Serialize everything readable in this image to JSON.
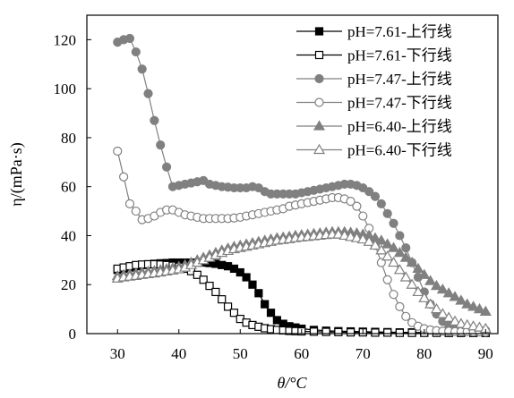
{
  "chart_data": {
    "type": "line",
    "xlabel": "θ/°C",
    "ylabel": "η/(mPa·s)",
    "xlim": [
      25,
      92
    ],
    "ylim": [
      0,
      130
    ],
    "xticks": [
      30,
      40,
      50,
      60,
      70,
      80,
      90
    ],
    "yticks": [
      0,
      20,
      40,
      60,
      80,
      100,
      120
    ],
    "grid": false,
    "legend_position": "top-right",
    "series": [
      {
        "name": "pH=7.61-上行线",
        "marker": "square",
        "filled": true,
        "color": "#000000",
        "x": [
          30,
          31,
          32,
          33,
          34,
          35,
          36,
          37,
          38,
          39,
          40,
          41,
          42,
          43,
          44,
          45,
          46,
          47,
          48,
          49,
          50,
          51,
          52,
          53,
          54,
          55,
          56,
          57,
          58,
          59,
          60,
          62,
          64,
          66,
          68,
          70,
          72,
          74,
          76,
          78,
          80,
          82,
          84,
          86,
          88,
          90
        ],
        "y": [
          26,
          26.5,
          27,
          27.5,
          28,
          28.3,
          28.5,
          28.7,
          28.8,
          29,
          29,
          29,
          29,
          29,
          29,
          28.8,
          28.5,
          28,
          27.5,
          26.5,
          25,
          23,
          20,
          16.5,
          12,
          8.5,
          5.5,
          4,
          3,
          2.5,
          2,
          1.5,
          1.2,
          1,
          0.9,
          0.8,
          0.7,
          0.6,
          0.5,
          0.5,
          0.4,
          0.4,
          0.3,
          0.3,
          0.3,
          0.3
        ]
      },
      {
        "name": "pH=7.61-下行线",
        "marker": "square",
        "filled": false,
        "color": "#000000",
        "x": [
          30,
          31,
          32,
          33,
          34,
          35,
          36,
          37,
          38,
          39,
          40,
          41,
          42,
          43,
          44,
          45,
          46,
          47,
          48,
          49,
          50,
          51,
          52,
          53,
          54,
          55,
          56,
          57,
          58,
          59,
          60,
          62,
          64,
          66,
          68,
          70,
          72,
          74,
          76,
          78,
          80,
          82,
          84,
          86,
          88,
          90
        ],
        "y": [
          26.5,
          27,
          27.5,
          28,
          28.2,
          28.3,
          28.3,
          28.2,
          28,
          27.7,
          27.3,
          26.5,
          25.5,
          24,
          22,
          19.5,
          17,
          14,
          11,
          8.5,
          6,
          4.5,
          3.5,
          2.8,
          2.2,
          1.8,
          1.5,
          1.3,
          1.1,
          1,
          0.9,
          0.8,
          0.7,
          0.6,
          0.5,
          0.5,
          0.4,
          0.4,
          0.3,
          0.3,
          0.3,
          0.3,
          0.3,
          0.3,
          0.3,
          0.3
        ]
      },
      {
        "name": "pH=7.47-上行线",
        "marker": "circle",
        "filled": true,
        "color": "#808080",
        "x": [
          30,
          31,
          32,
          33,
          34,
          35,
          36,
          37,
          38,
          39,
          40,
          41,
          42,
          43,
          44,
          45,
          46,
          47,
          48,
          49,
          50,
          51,
          52,
          53,
          54,
          55,
          56,
          57,
          58,
          59,
          60,
          61,
          62,
          63,
          64,
          65,
          66,
          67,
          68,
          69,
          70,
          71,
          72,
          73,
          74,
          75,
          76,
          77,
          78,
          79,
          80,
          81,
          82,
          83,
          84,
          85,
          86,
          87,
          88,
          89,
          90
        ],
        "y": [
          119,
          120,
          120.5,
          115,
          108,
          98,
          87,
          77,
          68,
          60,
          60.5,
          61,
          61.5,
          62,
          62.5,
          61,
          60.5,
          60,
          59.8,
          59.5,
          59.5,
          59.5,
          60,
          59.5,
          58,
          57,
          57,
          57,
          57,
          57,
          57.5,
          58,
          58.5,
          59,
          59.5,
          60,
          60.5,
          61,
          61,
          60.5,
          59.5,
          58,
          56,
          53,
          49,
          45,
          40,
          35,
          29,
          23,
          17,
          12,
          8,
          5,
          3.5,
          2.5,
          2,
          1.8,
          1.5,
          1.5,
          1.3
        ]
      },
      {
        "name": "pH=7.47-下行线",
        "marker": "circle",
        "filled": false,
        "color": "#808080",
        "x": [
          30,
          31,
          32,
          33,
          34,
          35,
          36,
          37,
          38,
          39,
          40,
          41,
          42,
          43,
          44,
          45,
          46,
          47,
          48,
          49,
          50,
          51,
          52,
          53,
          54,
          55,
          56,
          57,
          58,
          59,
          60,
          61,
          62,
          63,
          64,
          65,
          66,
          67,
          68,
          69,
          70,
          71,
          72,
          73,
          74,
          75,
          76,
          77,
          78,
          79,
          80,
          81,
          82,
          83,
          84,
          85,
          86,
          87,
          88,
          89,
          90
        ],
        "y": [
          74.5,
          64,
          53,
          50,
          46.5,
          47,
          48,
          49.5,
          50.5,
          50.5,
          49.5,
          48.5,
          48,
          47.5,
          47,
          47,
          47,
          47,
          47,
          47.2,
          47.5,
          48,
          48.5,
          49,
          49.5,
          50,
          50.5,
          51,
          52,
          52.5,
          53,
          53.5,
          54,
          54.5,
          55,
          55.5,
          55.5,
          55,
          54,
          52,
          48,
          43,
          36,
          29,
          22,
          16,
          11,
          7,
          4.5,
          3,
          2,
          1.5,
          1.2,
          1,
          1,
          0.8,
          0.8,
          0.8,
          0.7,
          0.7,
          0.6
        ]
      },
      {
        "name": "pH=6.40-上行线",
        "marker": "triangle",
        "filled": true,
        "color": "#808080",
        "x": [
          30,
          31,
          32,
          33,
          34,
          35,
          36,
          37,
          38,
          39,
          40,
          41,
          42,
          43,
          44,
          45,
          46,
          47,
          48,
          49,
          50,
          51,
          52,
          53,
          54,
          55,
          56,
          57,
          58,
          59,
          60,
          61,
          62,
          63,
          64,
          65,
          66,
          67,
          68,
          69,
          70,
          71,
          72,
          73,
          74,
          75,
          76,
          77,
          78,
          79,
          80,
          81,
          82,
          83,
          84,
          85,
          86,
          87,
          88,
          89,
          90
        ],
        "y": [
          23.5,
          24,
          24.3,
          24.6,
          25,
          25.3,
          25.6,
          26,
          26.4,
          26.8,
          27.3,
          28,
          29,
          30,
          31,
          32,
          33,
          34,
          34.8,
          35.5,
          36,
          36.5,
          37,
          37.5,
          38,
          38.5,
          39,
          39.3,
          39.6,
          40,
          40.3,
          40.5,
          40.8,
          41,
          41.3,
          41.5,
          41.5,
          41.5,
          41.3,
          41,
          40.5,
          40,
          39,
          38,
          36.5,
          35,
          33,
          31,
          29,
          26.5,
          24,
          21.5,
          19.5,
          18,
          16.5,
          15,
          13.5,
          12,
          11,
          10,
          9
        ]
      },
      {
        "name": "pH=6.40-下行线",
        "marker": "triangle",
        "filled": false,
        "color": "#808080",
        "x": [
          30,
          31,
          32,
          33,
          34,
          35,
          36,
          37,
          38,
          39,
          40,
          41,
          42,
          43,
          44,
          45,
          46,
          47,
          48,
          49,
          50,
          51,
          52,
          53,
          54,
          55,
          56,
          57,
          58,
          59,
          60,
          61,
          62,
          63,
          64,
          65,
          66,
          67,
          68,
          69,
          70,
          71,
          72,
          73,
          74,
          75,
          76,
          77,
          78,
          79,
          80,
          81,
          82,
          83,
          84,
          85,
          86,
          87,
          88,
          89,
          90
        ],
        "y": [
          22.5,
          23,
          23.3,
          23.6,
          24,
          24.3,
          24.6,
          25,
          25.4,
          25.8,
          26.3,
          27,
          28,
          29,
          30,
          31,
          32,
          33,
          33.8,
          34.5,
          35,
          35.5,
          36,
          36.5,
          37,
          37.5,
          38,
          38.3,
          38.6,
          39,
          39.3,
          39.5,
          39.8,
          40,
          40.3,
          40.5,
          40.5,
          40,
          39.5,
          39,
          38.5,
          37.5,
          36,
          34,
          31.5,
          29,
          26,
          23,
          20,
          17,
          14.5,
          12,
          10,
          8,
          6.5,
          5,
          4,
          3.5,
          3,
          2.5,
          2
        ]
      }
    ]
  }
}
